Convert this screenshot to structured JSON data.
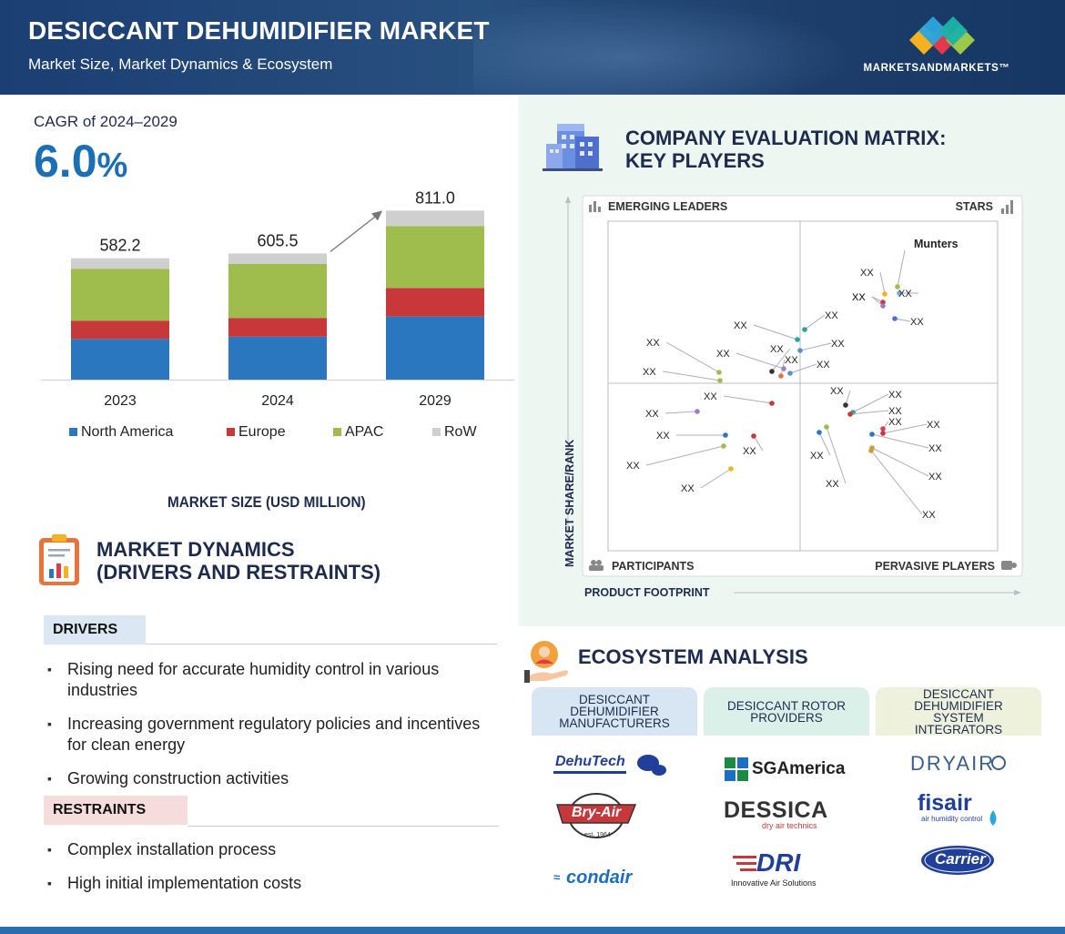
{
  "header": {
    "title": "DESICCANT DEHUMIDIFIER MARKET",
    "subtitle": "Market Size, Market Dynamics & Ecosystem",
    "brand": "MARKETSANDMARKETS™"
  },
  "cagr": {
    "label": "CAGR of 2024–2029",
    "value": "6.0",
    "unit": "%"
  },
  "chart_data": {
    "type": "bar",
    "stacked": true,
    "categories": [
      "2023",
      "2024",
      "2029"
    ],
    "totals": [
      582.2,
      605.5,
      811.0
    ],
    "total_labels": [
      "582.2",
      "605.5",
      "811.0"
    ],
    "series": [
      {
        "name": "North America",
        "values": [
          195.0,
          206.0,
          303.0
        ]
      },
      {
        "name": "Europe",
        "values": [
          88.0,
          90.0,
          137.0
        ]
      },
      {
        "name": "APAC",
        "values": [
          249.0,
          259.0,
          296.0
        ]
      },
      {
        "name": "RoW",
        "values": [
          50.2,
          50.5,
          75.0
        ]
      }
    ],
    "colors": [
      "#2a77c0",
      "#c8383a",
      "#9ebd4c",
      "#cfcfcf"
    ],
    "ylim": [
      0,
      830
    ],
    "xlabel": "MARKET SIZE (USD MILLION)",
    "legend_position": "bottom"
  },
  "dynamics": {
    "title_line1": "MARKET DYNAMICS",
    "title_line2": "(DRIVERS AND RESTRAINTS)",
    "drivers_label": "DRIVERS",
    "drivers": [
      "Rising need for accurate humidity control in various industries",
      "Increasing government regulatory policies and incentives for clean energy",
      "Growing construction activities"
    ],
    "restraints_label": "RESTRAINTS",
    "restraints": [
      "Complex installation process",
      "High initial implementation costs"
    ]
  },
  "matrix": {
    "title_line1": "COMPANY EVALUATION MATRIX:",
    "title_line2": "KEY PLAYERS",
    "quadrants": {
      "tl": "EMERGING LEADERS",
      "tr": "STARS",
      "bl": "PARTICIPANTS",
      "br": "PERVASIVE PLAYERS"
    },
    "y_axis": "MARKET SHARE/RANK",
    "x_axis": "PRODUCT FOOTPRINT",
    "named_player": "Munters",
    "placeholder": "XX"
  },
  "ecosystem": {
    "title": "ECOSYSTEM ANALYSIS",
    "columns": [
      {
        "label": "DESICCANT DEHUMIDIFIER MANUFACTURERS",
        "lines": [
          "DESICCANT",
          "DEHUMIDIFIER",
          "MANUFACTURERS"
        ],
        "color": "#d7e6f2",
        "logos": [
          "DehuTech",
          "Bry-Air",
          "condair"
        ]
      },
      {
        "label": "DESICCANT ROTOR PROVIDERS",
        "lines": [
          "DESICCANT ROTOR",
          "PROVIDERS"
        ],
        "color": "#dbf0e9",
        "logos": [
          "SGAmerica",
          "DESSICA",
          "DRI"
        ]
      },
      {
        "label": "DESICCANT DEHUMIDIFIER SYSTEM INTEGRATORS",
        "lines": [
          "DESICCANT",
          "DEHUMIDIFIER",
          "SYSTEM",
          "INTEGRATORS"
        ],
        "color": "#eef2dd",
        "logos": [
          "DRYAIR",
          "fisair",
          "Carrier"
        ]
      }
    ],
    "logo_sub": {
      "bryair": "est. 1964",
      "dessica": "dry air technics",
      "dri": "Innovative Air Solutions",
      "fisair": "air humidity control"
    }
  }
}
